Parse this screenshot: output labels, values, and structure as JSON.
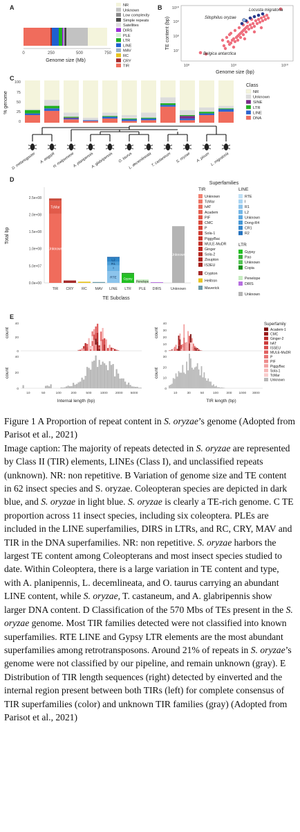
{
  "panels": {
    "a": {
      "letter": "A",
      "xlabel": "Genome size (Mb)",
      "ticks": [
        "0",
        "250",
        "500",
        "750"
      ],
      "legend": [
        {
          "label": "NR",
          "color": "#f4f4dc"
        },
        {
          "label": "Unknown",
          "color": "#c2c2c2"
        },
        {
          "label": "Low complexity",
          "color": "#8c8c8c"
        },
        {
          "label": "Simple repeats",
          "color": "#4a4a4a"
        },
        {
          "label": "Satellites",
          "color": "#dddddd"
        },
        {
          "label": "DIRS",
          "color": "#9b30d8"
        },
        {
          "label": "PLE",
          "color": "#d4ecd4"
        },
        {
          "label": "LTR",
          "color": "#22b022"
        },
        {
          "label": "LINE",
          "color": "#1f5fd0"
        },
        {
          "label": "MAV",
          "color": "#9ab0c8"
        },
        {
          "label": "RC",
          "color": "#e8c420"
        },
        {
          "label": "CRY",
          "color": "#a52a2a"
        },
        {
          "label": "TIR",
          "color": "#f06c5c"
        }
      ]
    },
    "b": {
      "letter": "B",
      "xlabel": "Genome size (bp)",
      "ylabel": "TE content (bp)",
      "xticks": [
        "10⁸",
        "10⁹",
        "10¹⁰"
      ],
      "yticks": [
        "10¹⁰",
        "10⁹",
        "10⁸",
        "10⁷"
      ],
      "labels": [
        "Locusta migratoria",
        "Sitophilus oryzae",
        "Belgica antarctica"
      ]
    },
    "c": {
      "letter": "C",
      "ylabel": "% genome",
      "yticks": [
        "100",
        "75",
        "50",
        "25",
        "0"
      ],
      "legend_title": "Class",
      "legend": [
        {
          "label": "NR",
          "color": "#f4f4dc"
        },
        {
          "label": "Unknown",
          "color": "#dcdcdc"
        },
        {
          "label": "SINE",
          "color": "#7a2a8a"
        },
        {
          "label": "LTR",
          "color": "#22b022"
        },
        {
          "label": "LINE",
          "color": "#2c64d0"
        },
        {
          "label": "DNA",
          "color": "#f06c5c"
        }
      ],
      "species": [
        "D. melanogaster",
        "A. aegypti",
        "H. melpomene",
        "A. planipennis",
        "A. glabripennis",
        "O. taurus",
        "L. decemlineata",
        "T. castaneum",
        "S. oryzae",
        "A. pisum",
        "L. migratoria"
      ]
    },
    "d": {
      "letter": "D",
      "ylabel": "Total bp",
      "xlabel": "TE Subclass",
      "yticks": [
        "2.5e+08",
        "2.0e+08",
        "1.5e+08",
        "1.0e+08",
        "5.0e+07",
        "0.0e+00"
      ],
      "subclasses": [
        "TIR",
        "CRY",
        "RC",
        "MAV",
        "LINE",
        "LTR",
        "PLE",
        "DIRS",
        "Unknown"
      ],
      "bar_labels": {
        "tir_top": "TcMar",
        "tir_mid": "Unknown",
        "line": [
          "L2",
          "R1",
          "I",
          "RTE"
        ],
        "ltr": "Gypsy",
        "ple": "Penelope",
        "unknown": "Unknown"
      },
      "superfamilies_title": "Superfamilies",
      "tir_title": "TIR",
      "tir_items": [
        "Unknown",
        "TcMar",
        "hAT",
        "Academ",
        "PIF",
        "CMC",
        "P",
        "Sola-1",
        "PiggyBac",
        "MULE-MuDR",
        "Ginger",
        "Sola-2",
        "Zisupton",
        "IS3EU"
      ],
      "tir_extra": [
        {
          "label": "Crypton",
          "color": "#a52a2a"
        },
        {
          "label": "Helitron",
          "color": "#e8c420"
        },
        {
          "label": "Maverick",
          "color": "#6a9aa8"
        }
      ],
      "line_title": "LINE",
      "line_items": [
        "RTE",
        "I",
        "R1",
        "L2",
        "Unknown",
        "Dong-R4",
        "CR1",
        "R2"
      ],
      "ltr_title": "LTR",
      "ltr_items": [
        "Gypsy",
        "Pao",
        "Unknown",
        "Copia"
      ],
      "ple_item": "Penelope",
      "dirs_item": "DIRS",
      "unknown_item": "Unknown"
    },
    "e": {
      "letter": "E",
      "left_ylabel": "count",
      "left_xlabel": "Internal length (bp)",
      "left_xticks": [
        "10",
        "50",
        "100",
        "200",
        "500",
        "1000",
        "2000",
        "5000"
      ],
      "left_yticks_top": [
        "40",
        "20",
        "0"
      ],
      "left_yticks_bottom": [
        "40",
        "20",
        "0"
      ],
      "right_ylabel": "count",
      "right_xlabel": "TIR length (bp)",
      "right_xticks": [
        "10",
        "30",
        "50",
        "100",
        "300",
        "1000",
        "3000"
      ],
      "right_yticks_top": [
        "40",
        "30",
        "20",
        "10",
        "0"
      ],
      "right_yticks_bottom": [
        "30",
        "20",
        "10",
        "0"
      ],
      "legend_title": "Superfamily",
      "legend": [
        {
          "label": "Academ-1",
          "color": "#7a0e0e"
        },
        {
          "label": "CMC",
          "color": "#9b1a1a"
        },
        {
          "label": "Ginger-2",
          "color": "#b82a2a"
        },
        {
          "label": "hAT",
          "color": "#cc3a3a"
        },
        {
          "label": "ISSEU",
          "color": "#d84c4c"
        },
        {
          "label": "MULE-MuDR",
          "color": "#e06060"
        },
        {
          "label": "P",
          "color": "#e87474"
        },
        {
          "label": "PIF",
          "color": "#ee8c8c"
        },
        {
          "label": "PiggyBac",
          "color": "#f2a2a2"
        },
        {
          "label": "Sola-1",
          "color": "#f6b8b8"
        },
        {
          "label": "TcMar",
          "color": "#f9cccc"
        },
        {
          "label": "Unknown",
          "color": "#b8b8b8"
        }
      ]
    }
  },
  "caption": {
    "title": "Figure 1 A Proportion of repeat content in ",
    "title_species": "S. oryzae",
    "title_rest": "’s genome (Adopted from Parisot et al., 2021)",
    "body_1": "Image caption: The majority of repeats detected in ",
    "sp1": "S. oryzae",
    "body_2": " are represented by Class II (TIR) elements, LINEs (Class I), and unclassified repeats (unknown). NR: non repetitive. B Variation of genome size and TE content in 62 insect species and S. oryzae. Coleopteran species are depicted in dark blue, and ",
    "sp2": "S. oryzae",
    "body_3": " in light blue. ",
    "sp3": "S. oryzae",
    "body_4": " is clearly a TE-rich genome. C TE proportion  across 11 insect species, including six coleoptera. PLEs are included in the LINE superfamilies, DIRS in LTRs, and RC, CRY, MAV and TIR in the DNA superfamilies. NR: non repetitive. ",
    "sp4": "S. oryzae",
    "body_5": " harbors the largest TE content among Coleopterans and most insect species studied to date. Within Coleoptera, there is a large variation in TE content and type, with A. planipennis, L. decemlineata, and O. taurus carrying an abundant LINE content, while ",
    "sp5": "S. oryzae",
    "body_6": ", T. castaneum, and A. glabripennis show larger DNA content. D Classification of the 570 Mbs of TEs present in the ",
    "sp6": "S. oryzae",
    "body_7": " genome. Most TIR families detected were not classified into known superfamilies. RTE LINE and Gypsy LTR elements are the most abundant superfamilies among retrotransposons. Around 21% of repeats in ",
    "sp7": "S. oryzae",
    "body_8": "’s genome were not classified by our pipeline, and remain unknown (gray). E Distribution of TIR length sequences (right) detected by einverted and the internal region present between both TIRs (left) for complete consensus of TIR superfamilies (color) and unknown TIR families (gray) (Adopted from Parisot et al., 2021)"
  }
}
